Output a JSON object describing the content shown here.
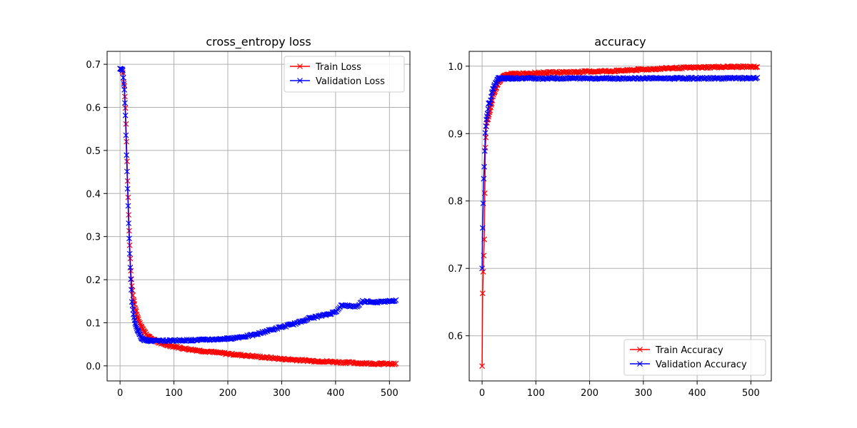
{
  "chart_data": [
    {
      "type": "line",
      "title": "cross_entropy loss",
      "xlabel": "",
      "ylabel": "",
      "xlim": [
        -24,
        538
      ],
      "ylim": [
        -0.035,
        0.73
      ],
      "xticks": [
        0,
        100,
        200,
        300,
        400,
        500
      ],
      "yticks": [
        0.0,
        0.1,
        0.2,
        0.3,
        0.4,
        0.5,
        0.6,
        0.7
      ],
      "ytick_labels": [
        "0.0",
        "0.1",
        "0.2",
        "0.3",
        "0.4",
        "0.5",
        "0.6",
        "0.7"
      ],
      "grid": true,
      "legend_position": "upper-right",
      "marker": "x",
      "x_range": [
        0,
        512
      ],
      "series": [
        {
          "name": "Train Loss",
          "color": "#ff0000",
          "points": [
            [
              0,
              0.69
            ],
            [
              3,
              0.688
            ],
            [
              5,
              0.68
            ],
            [
              8,
              0.65
            ],
            [
              10,
              0.6
            ],
            [
              12,
              0.52
            ],
            [
              14,
              0.43
            ],
            [
              16,
              0.35
            ],
            [
              18,
              0.28
            ],
            [
              20,
              0.22
            ],
            [
              22,
              0.185
            ],
            [
              25,
              0.155
            ],
            [
              28,
              0.135
            ],
            [
              32,
              0.115
            ],
            [
              36,
              0.1
            ],
            [
              40,
              0.09
            ],
            [
              45,
              0.08
            ],
            [
              50,
              0.07
            ],
            [
              60,
              0.062
            ],
            [
              70,
              0.055
            ],
            [
              80,
              0.05
            ],
            [
              100,
              0.045
            ],
            [
              120,
              0.04
            ],
            [
              150,
              0.035
            ],
            [
              200,
              0.028
            ],
            [
              250,
              0.022
            ],
            [
              300,
              0.016
            ],
            [
              350,
              0.012
            ],
            [
              400,
              0.009
            ],
            [
              450,
              0.006
            ],
            [
              512,
              0.004
            ]
          ]
        },
        {
          "name": "Validation Loss",
          "color": "#0000ff",
          "points": [
            [
              0,
              0.69
            ],
            [
              3,
              0.688
            ],
            [
              5,
              0.685
            ],
            [
              8,
              0.64
            ],
            [
              10,
              0.58
            ],
            [
              12,
              0.49
            ],
            [
              14,
              0.41
            ],
            [
              16,
              0.33
            ],
            [
              18,
              0.26
            ],
            [
              20,
              0.2
            ],
            [
              22,
              0.15
            ],
            [
              25,
              0.12
            ],
            [
              28,
              0.1
            ],
            [
              32,
              0.085
            ],
            [
              36,
              0.075
            ],
            [
              40,
              0.065
            ],
            [
              45,
              0.06
            ],
            [
              50,
              0.059
            ],
            [
              60,
              0.058
            ],
            [
              80,
              0.058
            ],
            [
              100,
              0.059
            ],
            [
              150,
              0.06
            ],
            [
              200,
              0.063
            ],
            [
              230,
              0.068
            ],
            [
              250,
              0.072
            ],
            [
              270,
              0.08
            ],
            [
              300,
              0.09
            ],
            [
              330,
              0.1
            ],
            [
              350,
              0.11
            ],
            [
              380,
              0.118
            ],
            [
              400,
              0.125
            ],
            [
              410,
              0.14
            ],
            [
              440,
              0.138
            ],
            [
              450,
              0.15
            ],
            [
              480,
              0.148
            ],
            [
              512,
              0.152
            ]
          ]
        }
      ]
    },
    {
      "type": "line",
      "title": "accuracy",
      "xlabel": "",
      "ylabel": "",
      "xlim": [
        -24,
        538
      ],
      "ylim": [
        0.533,
        1.022
      ],
      "xticks": [
        0,
        100,
        200,
        300,
        400,
        500
      ],
      "yticks": [
        0.6,
        0.7,
        0.8,
        0.9,
        1.0
      ],
      "ytick_labels": [
        "0.6",
        "0.7",
        "0.8",
        "0.9",
        "1.0"
      ],
      "grid": true,
      "legend_position": "lower-right",
      "marker": "x",
      "x_range": [
        0,
        512
      ],
      "series": [
        {
          "name": "Train Accuracy",
          "color": "#ff0000",
          "points": [
            [
              0,
              0.555
            ],
            [
              1,
              0.663
            ],
            [
              2,
              0.695
            ],
            [
              4,
              0.743
            ],
            [
              6,
              0.88
            ],
            [
              8,
              0.91
            ],
            [
              10,
              0.92
            ],
            [
              12,
              0.925
            ],
            [
              15,
              0.935
            ],
            [
              18,
              0.945
            ],
            [
              20,
              0.955
            ],
            [
              25,
              0.965
            ],
            [
              30,
              0.975
            ],
            [
              35,
              0.98
            ],
            [
              40,
              0.985
            ],
            [
              50,
              0.988
            ],
            [
              70,
              0.989
            ],
            [
              100,
              0.99
            ],
            [
              150,
              0.991
            ],
            [
              200,
              0.992
            ],
            [
              250,
              0.993
            ],
            [
              300,
              0.995
            ],
            [
              350,
              0.997
            ],
            [
              400,
              0.998
            ],
            [
              450,
              0.999
            ],
            [
              512,
              0.999
            ]
          ]
        },
        {
          "name": "Validation Accuracy",
          "color": "#0000ff",
          "points": [
            [
              0,
              0.7
            ],
            [
              1,
              0.76
            ],
            [
              3,
              0.833
            ],
            [
              4,
              0.85
            ],
            [
              6,
              0.9
            ],
            [
              8,
              0.92
            ],
            [
              10,
              0.93
            ],
            [
              12,
              0.945
            ],
            [
              15,
              0.946
            ],
            [
              18,
              0.96
            ],
            [
              22,
              0.97
            ],
            [
              26,
              0.975
            ],
            [
              30,
              0.982
            ],
            [
              40,
              0.982
            ],
            [
              100,
              0.982
            ],
            [
              200,
              0.982
            ],
            [
              300,
              0.982
            ],
            [
              400,
              0.982
            ],
            [
              512,
              0.982
            ]
          ]
        }
      ]
    }
  ]
}
